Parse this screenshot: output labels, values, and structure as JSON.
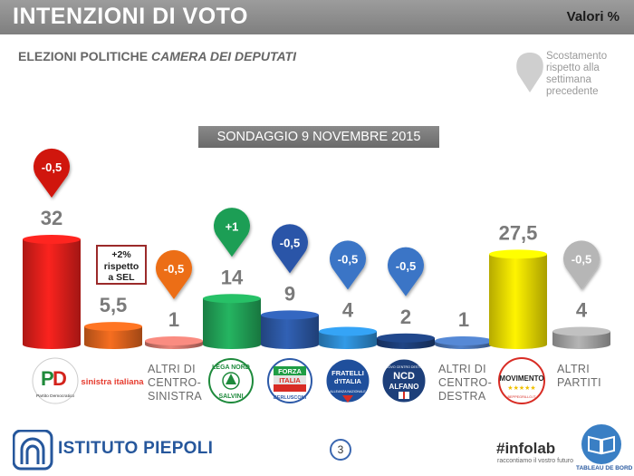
{
  "header": {
    "title": "INTENZIONI DI VOTO",
    "unit": "Valori %"
  },
  "subtitle": {
    "main": "ELEZIONI POLITICHE ",
    "italic": "CAMERA DEI DEPUTATI"
  },
  "legend_note": {
    "text": "Scostamento rispetto alla settimana precedente"
  },
  "survey_label": "SONDAGGIO 9 NOVEMBRE 2015",
  "sel_note": [
    "+2%",
    "rispetto",
    "a SEL"
  ],
  "chart_data": {
    "type": "bar",
    "categories": [
      "PD",
      "Sinistra Italiana",
      "Altri di centro-sinistra",
      "Lega Nord",
      "Forza Italia",
      "Fratelli d'Italia",
      "NCD",
      "Altri di centro-destra",
      "Movimento 5 Stelle",
      "Altri partiti"
    ],
    "values": [
      32,
      5.5,
      1,
      14,
      9,
      4,
      2,
      1,
      27.5,
      4
    ],
    "value_labels": [
      "32",
      "5,5",
      "1",
      "14",
      "9",
      "4",
      "2",
      "1",
      "27,5",
      "4"
    ],
    "changes": [
      "-0,5",
      "",
      "-0,5",
      "+1",
      "-0,5",
      "-0,5",
      "-0,5",
      "",
      "",
      "-0,5"
    ],
    "colors": [
      "#e8201c",
      "#e4661e",
      "#d97a70",
      "#22a85a",
      "#2d5aa8",
      "#2e8fd6",
      "#1d3f7a",
      "#4b77ba",
      "#f2e200",
      "#a8a8a8"
    ],
    "pin_colors": [
      "#d0180f",
      "",
      "#ec6e14",
      "#1f9e55",
      "#2c55a8",
      "#3a75c6",
      "#3a75c6",
      "",
      "",
      "#b6b6b6"
    ],
    "ylim": [
      0,
      35
    ]
  },
  "category_labels": {
    "altri_cs": [
      "ALTRI DI",
      "CENTRO-",
      "SINISTRA"
    ],
    "altri_cd": [
      "ALTRI DI",
      "CENTRO-",
      "DESTRA"
    ],
    "altri_partiti": [
      "ALTRI",
      "PARTITI"
    ]
  },
  "logos": {
    "pd_caption": "Partito Democratico",
    "si_text": "sinistra italiana",
    "lega_top": "LEGA NORD",
    "lega_bottom": "SALVINI",
    "fi_line1": "FORZA",
    "fi_line2": "ITALIA",
    "fi_bottom": "BERLUSCONI",
    "fdi_line1": "FRATELLI",
    "fdi_line2": "d'ITALIA",
    "fdi_bottom": "ALLEANZA NAZIONALE",
    "ncd_top": "NUOVO CENTRO DESTRA",
    "ncd_main": "NCD",
    "ncd_bottom": "ALFANO",
    "m5s_main": "MOVIMENTO",
    "m5s_bottom": "BEPPEGRILLO.IT"
  },
  "footer": {
    "brand": "ISTITUTO PIEPOLI",
    "page_number": "3",
    "infolab": "#infolab",
    "infolab_tagline": "raccontiamo il vostro futuro",
    "tableau": "TABLEAU DE BORD"
  }
}
